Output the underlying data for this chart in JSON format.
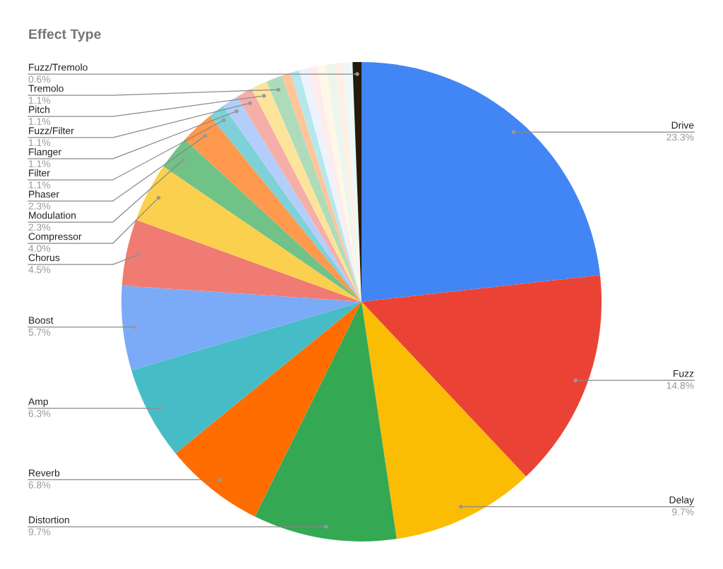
{
  "chart_data": {
    "type": "pie",
    "title": "Effect Type",
    "categories": [
      "Drive",
      "Fuzz",
      "Delay",
      "Distortion",
      "Reverb",
      "Amp",
      "Boost",
      "Chorus",
      "Compressor",
      "Modulation",
      "Phaser",
      "Filter",
      "Flanger",
      "Fuzz/Filter",
      "Pitch",
      "Tremolo",
      null,
      null,
      null,
      null,
      null,
      null,
      null,
      null,
      "Fuzz/Tremolo"
    ],
    "values": [
      23.3,
      14.8,
      9.7,
      9.7,
      6.8,
      6.3,
      5.7,
      4.5,
      4.0,
      2.3,
      2.3,
      1.1,
      1.1,
      1.1,
      1.1,
      1.1,
      0.6,
      0.6,
      0.6,
      0.6,
      0.6,
      0.6,
      0.6,
      0.6,
      0.6
    ],
    "value_labels": [
      "23.3%",
      "14.8%",
      "9.7%",
      "9.7%",
      "6.8%",
      "6.3%",
      "5.7%",
      "4.5%",
      "4.0%",
      "2.3%",
      "2.3%",
      "1.1%",
      "1.1%",
      "1.1%",
      "1.1%",
      "1.1%",
      null,
      null,
      null,
      null,
      null,
      null,
      null,
      null,
      "0.6%"
    ],
    "colors": [
      "#4285f4",
      "#ea4335",
      "#fbbc04",
      "#34a853",
      "#ff6d01",
      "#46bdc6",
      "#7baaf7",
      "#f07b72",
      "#fcd04f",
      "#71c287",
      "#ff994d",
      "#7ed1d7",
      "#b3cefb",
      "#f6aea9",
      "#fde49b",
      "#aedcba",
      "#ffc599",
      "#b5e8ec",
      "#ecf3fe",
      "#fdeceb",
      "#fff8e6",
      "#ebf6ee",
      "#fff0e6",
      "#ecf8f9",
      "#261a08"
    ],
    "legend": false
  }
}
